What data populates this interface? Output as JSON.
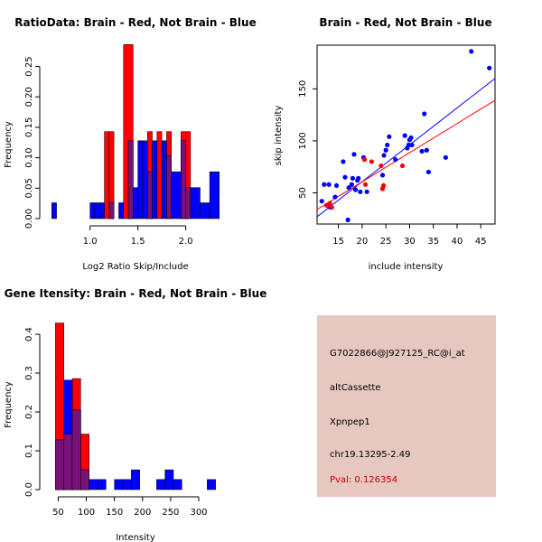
{
  "chart_data": [
    {
      "type": "bar",
      "title": "RatioData: Brain - Red, Not Brain - Blue",
      "xlabel": "Log2 Ratio Skip/Include",
      "ylabel": "Frequency",
      "xlim": [
        0.55,
        2.4
      ],
      "ylim": [
        0,
        0.285
      ],
      "xticks": [
        1.0,
        1.5,
        2.0
      ],
      "xtick_labels": [
        "1.0",
        "1.5",
        "2.0"
      ],
      "yticks": [
        0,
        0.05,
        0.1,
        0.15,
        0.2,
        0.25
      ],
      "ytick_labels": [
        "0.00",
        "0.05",
        "0.10",
        "0.15",
        "0.20",
        "0.25"
      ],
      "series": [
        {
          "name": "Brain",
          "color": "#ff0000",
          "bins": [
            [
              1.15,
              1.2,
              0.143
            ],
            [
              1.2,
              1.25,
              0.143
            ],
            [
              1.35,
              1.45,
              0.286
            ],
            [
              1.6,
              1.65,
              0.143
            ],
            [
              1.7,
              1.75,
              0.143
            ],
            [
              1.8,
              1.85,
              0.143
            ],
            [
              1.95,
              2.0,
              0.143
            ],
            [
              2.0,
              2.05,
              0.143
            ]
          ]
        },
        {
          "name": "Not Brain",
          "color": "#0000ff",
          "bins": [
            [
              0.6,
              0.65,
              0.026
            ],
            [
              1.0,
              1.05,
              0.026
            ],
            [
              1.05,
              1.1,
              0.026
            ],
            [
              1.1,
              1.15,
              0.026
            ],
            [
              1.2,
              1.25,
              0.026
            ],
            [
              1.3,
              1.35,
              0.026
            ],
            [
              1.4,
              1.45,
              0.128
            ],
            [
              1.45,
              1.5,
              0.051
            ],
            [
              1.5,
              1.55,
              0.128
            ],
            [
              1.55,
              1.6,
              0.128
            ],
            [
              1.6,
              1.65,
              0.077
            ],
            [
              1.65,
              1.7,
              0.128
            ],
            [
              1.75,
              1.8,
              0.128
            ],
            [
              1.8,
              1.85,
              0.103
            ],
            [
              1.85,
              1.95,
              0.077
            ],
            [
              1.95,
              2.0,
              0.128
            ],
            [
              2.0,
              2.05,
              0.051
            ],
            [
              2.05,
              2.15,
              0.051
            ],
            [
              2.15,
              2.25,
              0.026
            ],
            [
              2.25,
              2.35,
              0.077
            ]
          ]
        }
      ]
    },
    {
      "type": "scatter",
      "title": "Brain - Red, Not Brain - Blue",
      "xlabel": "include intensity",
      "ylabel": "skip intensity",
      "xlim": [
        10.5,
        48
      ],
      "ylim": [
        20,
        192
      ],
      "xticks": [
        15,
        20,
        25,
        30,
        35,
        40,
        45
      ],
      "yticks": [
        50,
        100,
        150
      ],
      "series": [
        {
          "name": "Brain",
          "color": "#ff0000",
          "x": [
            12.5,
            13.2,
            13.6,
            20.5,
            20.7,
            22.0,
            24.0,
            24.3,
            24.5,
            28.5
          ],
          "y": [
            38,
            40,
            36,
            82,
            58,
            80,
            76,
            54,
            57,
            76
          ],
          "fit": [
            [
              10.5,
              34
            ],
            [
              48,
              139
            ]
          ]
        },
        {
          "name": "Not Brain",
          "color": "#0000ff",
          "x": [
            11.5,
            12.0,
            12.6,
            13.0,
            13.3,
            14.3,
            14.6,
            16.0,
            16.4,
            17.0,
            17.2,
            17.8,
            18.0,
            18.3,
            18.6,
            19.0,
            19.2,
            19.6,
            20.3,
            21.0,
            24.3,
            24.6,
            25.0,
            25.3,
            25.7,
            27.0,
            29.0,
            29.5,
            29.8,
            30.0,
            30.3,
            30.5,
            32.6,
            33.1,
            33.6,
            34.0,
            37.6,
            43.0,
            46.8
          ],
          "y": [
            42,
            58,
            38,
            58,
            36,
            46,
            57,
            80,
            65,
            24,
            55,
            58,
            64,
            87,
            53,
            62,
            64,
            51,
            84,
            51,
            67,
            86,
            91,
            96,
            104,
            82,
            105,
            93,
            96,
            101,
            103,
            96,
            90,
            126,
            91,
            70,
            84,
            186,
            170
          ],
          "fit": [
            [
              10.5,
              27
            ],
            [
              48,
              160
            ]
          ]
        }
      ]
    },
    {
      "type": "bar",
      "title": "Gene Itensity: Brain - Red, Not Brain - Blue",
      "xlabel": "Intensity",
      "ylabel": "Frequency",
      "xlim": [
        30,
        345
      ],
      "ylim": [
        0,
        0.435
      ],
      "xticks": [
        50,
        100,
        150,
        200,
        250,
        300
      ],
      "yticks": [
        0,
        0.1,
        0.2,
        0.3,
        0.4
      ],
      "ytick_labels": [
        "0.0",
        "0.1",
        "0.2",
        "0.3",
        "0.4"
      ],
      "series": [
        {
          "name": "Brain",
          "color": "#ff0000",
          "bins": [
            [
              45,
              60,
              0.429
            ],
            [
              60,
              75,
              0.143
            ],
            [
              75,
              90,
              0.286
            ],
            [
              90,
              105,
              0.143
            ]
          ]
        },
        {
          "name": "Not Brain",
          "color": "#0000ff",
          "bins": [
            [
              45,
              60,
              0.128
            ],
            [
              60,
              75,
              0.282
            ],
            [
              75,
              90,
              0.205
            ],
            [
              90,
              105,
              0.051
            ],
            [
              105,
              120,
              0.026
            ],
            [
              120,
              135,
              0.026
            ],
            [
              150,
              165,
              0.026
            ],
            [
              165,
              180,
              0.026
            ],
            [
              180,
              195,
              0.051
            ],
            [
              225,
              240,
              0.026
            ],
            [
              240,
              255,
              0.051
            ],
            [
              255,
              270,
              0.026
            ],
            [
              315,
              330,
              0.026
            ]
          ]
        }
      ]
    }
  ],
  "info_panel": {
    "probe_id": "G7022866@J927125_RC@i_at",
    "event_type": "altCassette",
    "gene": "Xpnpep1",
    "location": "chr19.13295-2.49",
    "pval": "Pval: 0.126354"
  }
}
